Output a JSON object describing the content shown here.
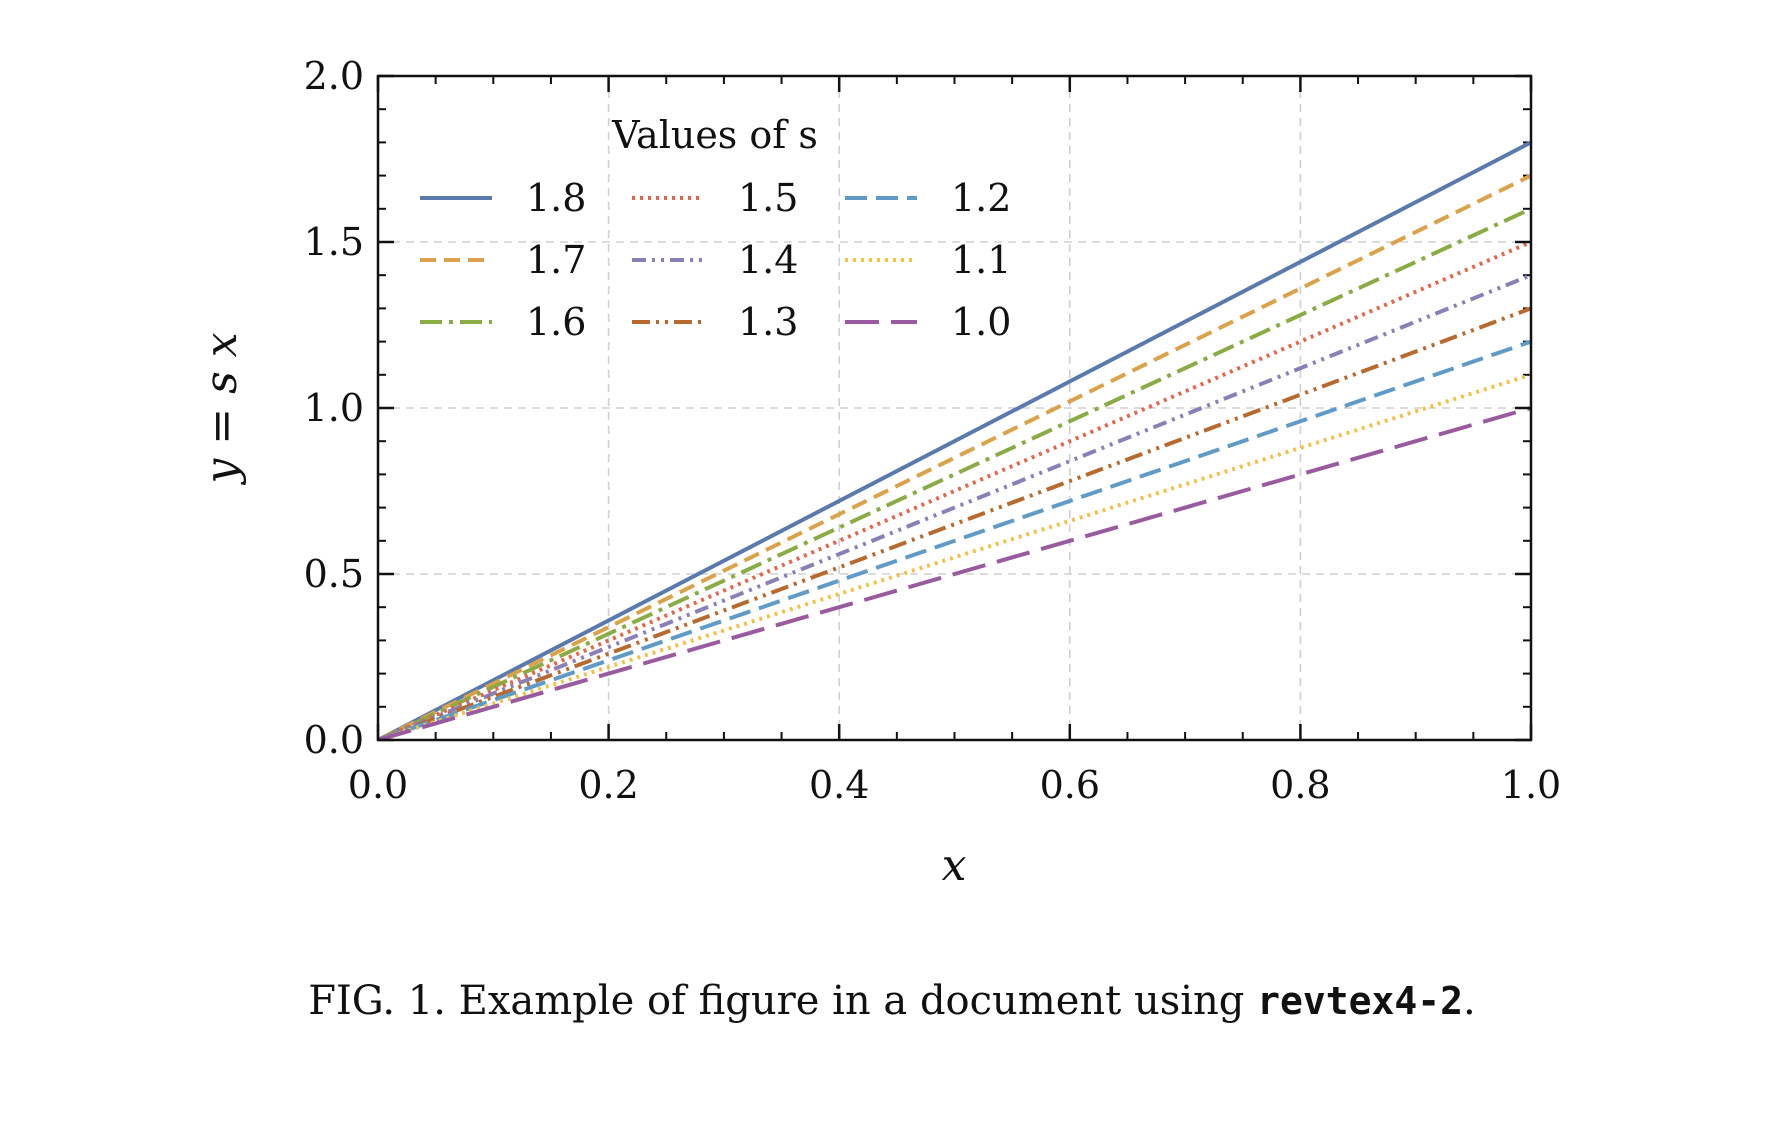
{
  "caption": {
    "prefix": "FIG. 1.  Example of figure in a document using ",
    "code": "revtex4-2",
    "suffix": "."
  },
  "chart_data": {
    "type": "line",
    "title": "",
    "xlabel": "x",
    "ylabel": "y = s x",
    "xlim": [
      0.0,
      1.0
    ],
    "ylim": [
      0.0,
      2.0
    ],
    "x_ticks": [
      "0.0",
      "0.2",
      "0.4",
      "0.6",
      "0.8",
      "1.0"
    ],
    "y_ticks": [
      "0.0",
      "0.5",
      "1.0",
      "1.5",
      "2.0"
    ],
    "grid": true,
    "legend": {
      "title": "Values of s",
      "placement": "top-left",
      "columns": 3
    },
    "x": [
      0.0,
      1.0
    ],
    "series": [
      {
        "name": "1.8",
        "values": [
          0.0,
          1.8
        ],
        "color": "#5a7aad",
        "style": "solid"
      },
      {
        "name": "1.7",
        "values": [
          0.0,
          1.7
        ],
        "color": "#dca24a",
        "style": "dashed"
      },
      {
        "name": "1.6",
        "values": [
          0.0,
          1.6
        ],
        "color": "#8bab45",
        "style": "dashdot"
      },
      {
        "name": "1.5",
        "values": [
          0.0,
          1.5
        ],
        "color": "#e5664a",
        "style": "dotted"
      },
      {
        "name": "1.4",
        "values": [
          0.0,
          1.4
        ],
        "color": "#8a7fb6",
        "style": "dashdotdot"
      },
      {
        "name": "1.3",
        "values": [
          0.0,
          1.3
        ],
        "color": "#b8692e",
        "style": "dashdotdot-long"
      },
      {
        "name": "1.2",
        "values": [
          0.0,
          1.2
        ],
        "color": "#5f9bc6",
        "style": "longdash-short"
      },
      {
        "name": "1.1",
        "values": [
          0.0,
          1.1
        ],
        "color": "#f2c14a",
        "style": "dotted"
      },
      {
        "name": "1.0",
        "values": [
          0.0,
          1.0
        ],
        "color": "#9a5aa0",
        "style": "longdash"
      }
    ]
  }
}
